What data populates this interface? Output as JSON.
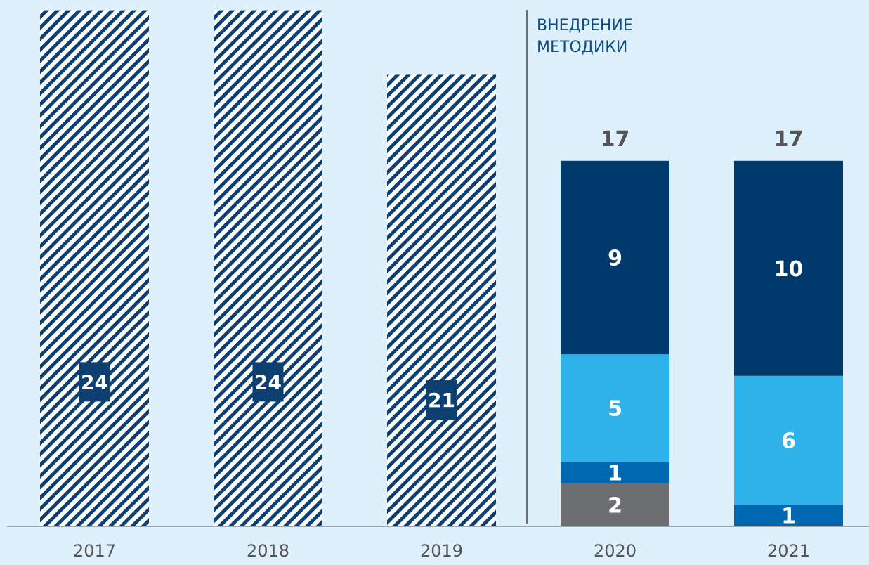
{
  "chart_data": {
    "type": "bar",
    "stacked": true,
    "categories": [
      "2017",
      "2018",
      "2019",
      "2020",
      "2021"
    ],
    "series": [
      {
        "values": [
          24,
          24,
          21,
          null,
          null
        ],
        "color": "#0d3f70",
        "pattern": "diagonal-hatch"
      },
      {
        "values": [
          null,
          null,
          null,
          2,
          null
        ],
        "color": "#6d6e71"
      },
      {
        "values": [
          null,
          null,
          null,
          1,
          1
        ],
        "color": "#0067b1"
      },
      {
        "values": [
          null,
          null,
          null,
          5,
          6
        ],
        "color": "#2db2e9"
      },
      {
        "values": [
          null,
          null,
          null,
          9,
          10
        ],
        "color": "#00396b"
      }
    ],
    "totals": {
      "2020": "17",
      "2021": "17"
    },
    "annotation": [
      "ВНЕДРЕНИЕ",
      "МЕТОДИКИ"
    ],
    "ylim": [
      0,
      24
    ],
    "grid": false,
    "legend": "none",
    "xlabel": "",
    "ylabel": ""
  },
  "colors": {
    "background": "#dff0fd",
    "axis": "#7a7a7a",
    "hatch_stripe": "#0d3f70",
    "tick_text": "#555555",
    "annotation_text": "#0d4d84"
  }
}
